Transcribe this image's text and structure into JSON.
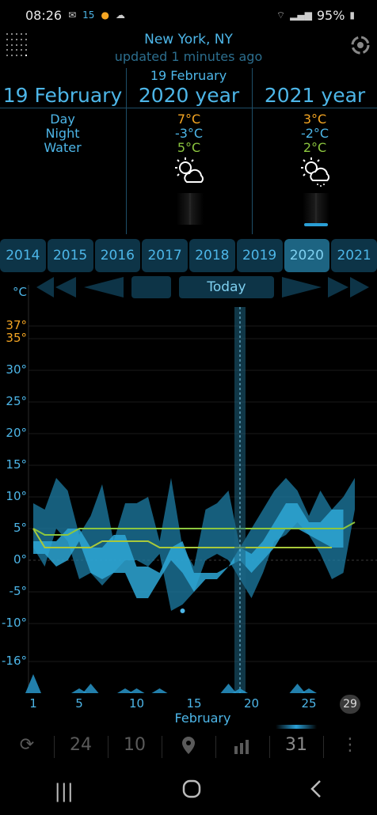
{
  "status": {
    "time": "08:26",
    "battery": "95%",
    "icons": [
      "mail-icon",
      "thermo-icon",
      "weather-icon",
      "cloud-icon",
      "wifi-icon",
      "signal-icon",
      "battery-icon"
    ],
    "temp_badge": "15"
  },
  "header": {
    "city": "New York, NY",
    "updated": "updated 1 minutes ago"
  },
  "top_date": "19 February",
  "columns": [
    {
      "title": "19 February",
      "labels": [
        "Day",
        "Night",
        "Water"
      ]
    },
    {
      "title": "2020 year",
      "day": "7°C",
      "night": "-3°C",
      "water": "5°C",
      "icon": "partly-cloudy-icon"
    },
    {
      "title": "2021 year",
      "day": "3°C",
      "night": "-2°C",
      "water": "2°C",
      "icon": "partly-cloudy-snow-icon",
      "precip_fraction": 0.1
    }
  ],
  "years": [
    "2014",
    "2015",
    "2016",
    "2017",
    "2018",
    "2019",
    "2020",
    "2021"
  ],
  "active_year": "2020",
  "nav": {
    "today": "Today"
  },
  "toolbar": {
    "item1": "24",
    "item2": "10",
    "item4": "31"
  },
  "colors": {
    "accent": "#4db6e8",
    "orange": "#f5a623",
    "green": "#8cc63f",
    "band2020": "#2ea7d6",
    "band2021": "#1e7ea6"
  },
  "chart_data": {
    "type": "area",
    "ylabel": "°C",
    "xlabel": "February",
    "ylim": [
      -21,
      40
    ],
    "y_ticks": [
      "37°",
      "35°",
      "30°",
      "25°",
      "20°",
      "15°",
      "10°",
      "5°",
      "0°",
      "-5°",
      "-10°",
      "-16°"
    ],
    "x_ticks": [
      "1",
      "5",
      "10",
      "15",
      "20",
      "25",
      "29"
    ],
    "today_day": 19,
    "series": [
      {
        "day": [
          1,
          2,
          3,
          4,
          5,
          6,
          7,
          8,
          9,
          10,
          11,
          12,
          13,
          14,
          15,
          16,
          17,
          18,
          19,
          20,
          21,
          22,
          23,
          24,
          25,
          26,
          27,
          28
        ],
        "high": [
          3,
          3,
          3,
          5,
          5,
          2,
          2,
          4,
          4,
          -1,
          -1,
          -2,
          2,
          3,
          -2,
          -2,
          -2,
          -1,
          2,
          1,
          3,
          6,
          9,
          9,
          6,
          6,
          8,
          8
        ],
        "low": [
          1,
          1,
          -1,
          0,
          3,
          -2,
          -3,
          -2,
          -2,
          -6,
          -6,
          -3,
          0,
          -2,
          -5,
          -3,
          -3,
          -1,
          0,
          -2,
          0,
          2,
          5,
          5,
          4,
          3,
          2,
          2
        ]
      },
      {
        "day": [
          1,
          2,
          3,
          4,
          5,
          6,
          7,
          8,
          9,
          10,
          11,
          12,
          13,
          14,
          15,
          16,
          17,
          18,
          19,
          20,
          21,
          22,
          23,
          24,
          25,
          26,
          27,
          28,
          29
        ],
        "high": [
          9,
          8,
          13,
          11,
          4,
          7,
          12,
          3,
          9,
          9,
          10,
          3,
          13,
          2,
          -1,
          8,
          9,
          11,
          2,
          5,
          8,
          11,
          13,
          11,
          7,
          11,
          8,
          10,
          13
        ],
        "low": [
          2,
          -1,
          5,
          3,
          -3,
          -2,
          -4,
          -2,
          0,
          0,
          -1,
          1,
          -8,
          -7,
          -5,
          0,
          1,
          0,
          -3,
          -6,
          -2,
          3,
          4,
          6,
          4,
          1,
          -3,
          -2,
          8
        ]
      }
    ],
    "norm_lines": [
      {
        "values": [
          5,
          4,
          4,
          4,
          5,
          5,
          5,
          5,
          5,
          5,
          5,
          5,
          5,
          5,
          5,
          5,
          5,
          5,
          5,
          5,
          5,
          5,
          5,
          5,
          5,
          5,
          5,
          5,
          6
        ]
      },
      {
        "values": [
          5,
          2,
          2,
          2,
          2,
          2,
          3,
          3,
          3,
          3,
          3,
          2,
          2,
          2,
          2,
          2,
          2,
          2,
          2,
          2,
          2,
          2,
          2,
          2,
          2,
          2,
          2
        ]
      }
    ],
    "precip": [
      4,
      0,
      0,
      0,
      1,
      2,
      0,
      0,
      1,
      1,
      0,
      1,
      0,
      0,
      0,
      0,
      0,
      2,
      1,
      0,
      0,
      0,
      0,
      2,
      1,
      0,
      0,
      0
    ]
  }
}
